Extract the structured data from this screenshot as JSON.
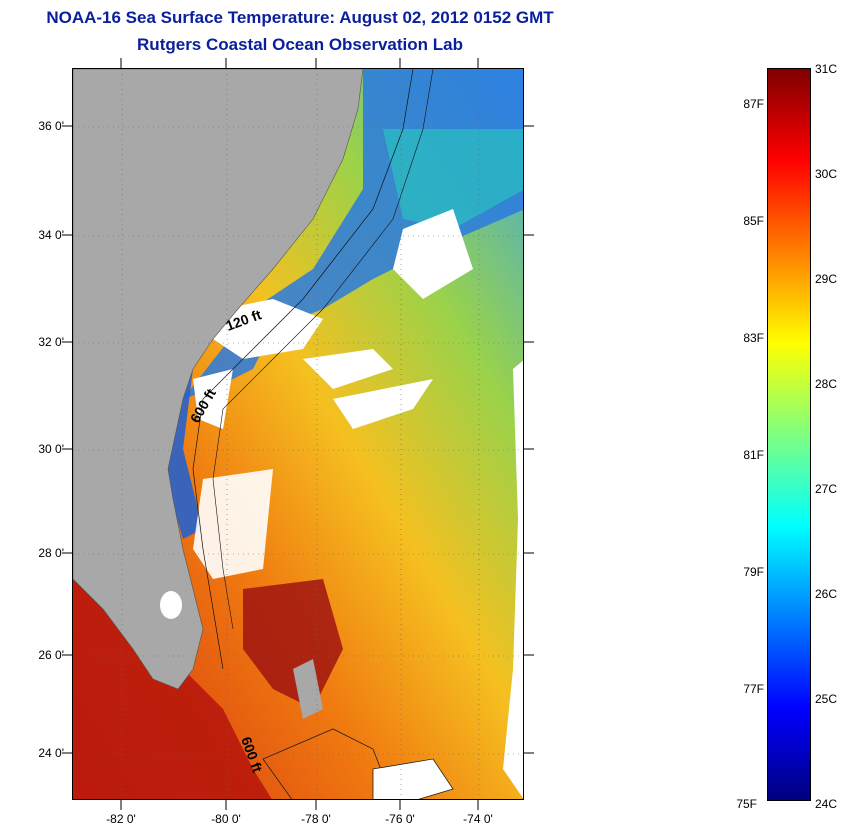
{
  "title_line1": "NOAA-16 Sea Surface Temperature:  August 02, 2012 0152 GMT",
  "title_line2": "Rutgers Coastal Ocean Observation Lab",
  "lat_labels": [
    "36 0'",
    "34 0'",
    "32 0'",
    "30 0'",
    "28 0'",
    "26 0'",
    "24 0'"
  ],
  "lon_labels": [
    "-82 0'",
    "-80 0'",
    "-78 0'",
    "-76 0'",
    "-74 0'"
  ],
  "bathymetry_labels": [
    "120 ft",
    "600 ft",
    "600 ft"
  ],
  "colorbar": {
    "fahrenheit_labels": [
      "87F",
      "85F",
      "83F",
      "81F",
      "79F",
      "77F",
      "75F"
    ],
    "celsius_labels": [
      "31C",
      "30C",
      "29C",
      "28C",
      "27C",
      "26C",
      "25C",
      "24C"
    ],
    "range_celsius": [
      24,
      31
    ],
    "palette": [
      "#00007f",
      "#0000ff",
      "#007fff",
      "#00ffff",
      "#7fff7f",
      "#ffff00",
      "#ff7f00",
      "#ff0000",
      "#7f0000"
    ]
  },
  "colors": {
    "land": "#a8a8a8",
    "no_data": "#ffffff",
    "title": "#0a1f9c"
  }
}
